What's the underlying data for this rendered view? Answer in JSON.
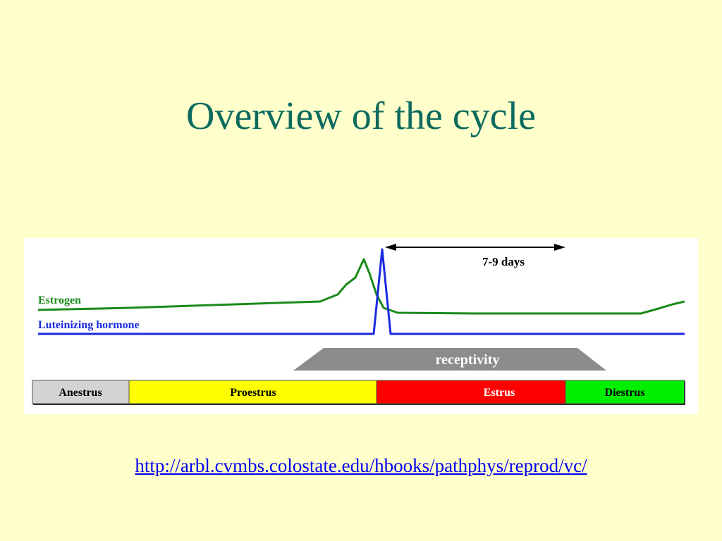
{
  "slide": {
    "title": "Overview of the cycle",
    "source_url": "http://arbl.cvmbs.colostate.edu/hbooks/pathphys/reprod/vc/"
  },
  "diagram": {
    "curves": {
      "estrogen": {
        "label": "Estrogen",
        "color": "#1a8a1a"
      },
      "lh": {
        "label": "Luteinizing hormone",
        "color": "#1a2adf"
      }
    },
    "duration_label": "7-9 days",
    "receptivity_label": "receptivity",
    "phases": [
      {
        "label": "Anestrus",
        "color": "#d3d3d3"
      },
      {
        "label": "Proestrus",
        "color": "#ffff00"
      },
      {
        "label": "Estrus",
        "color": "#ff0000"
      },
      {
        "label": "Diestrus",
        "color": "#00ee00"
      }
    ]
  }
}
